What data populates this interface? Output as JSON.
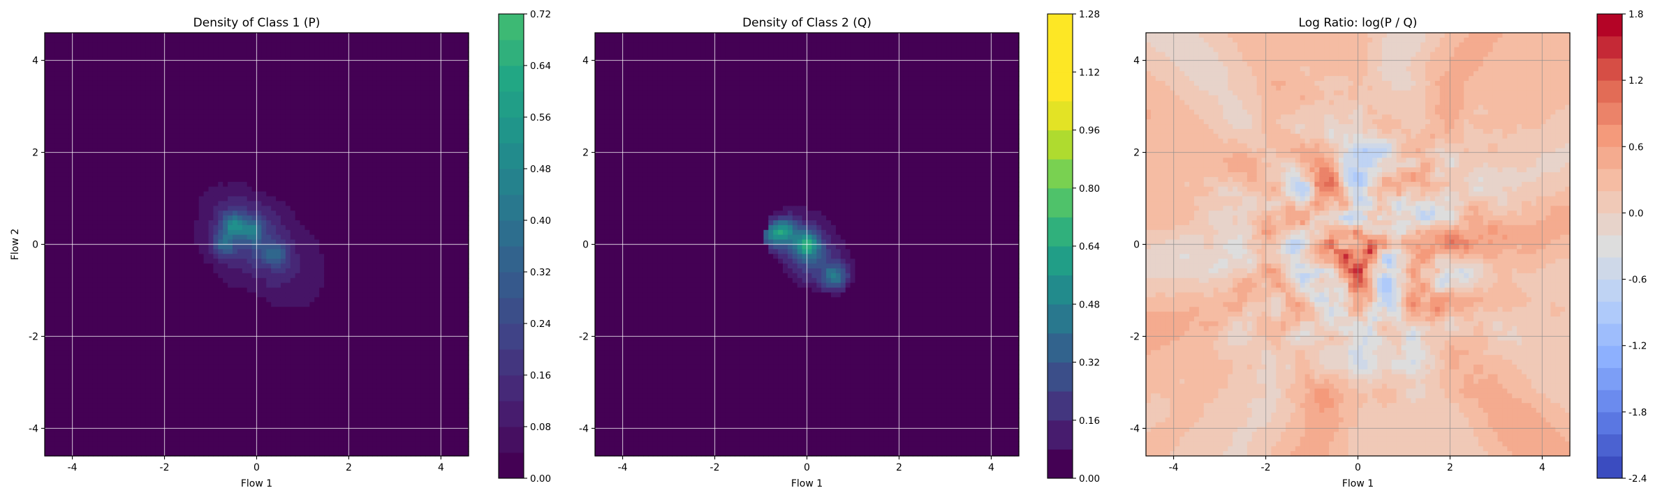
{
  "chart_data": [
    {
      "type": "heatmap",
      "title": "Density of Class 1 (P)",
      "xlabel": "Flow 1",
      "ylabel": "Flow 2",
      "xlim": [
        -4.6,
        4.6
      ],
      "ylim": [
        -4.6,
        4.6
      ],
      "xticks": [
        -4,
        -2,
        0,
        2,
        4
      ],
      "yticks": [
        -4,
        -2,
        0,
        2,
        4
      ],
      "grid": true,
      "colormap": "viridis",
      "colorbar": {
        "ticks": [
          "0.00",
          "0.08",
          "0.16",
          "0.24",
          "0.32",
          "0.40",
          "0.48",
          "0.56",
          "0.64",
          "0.72"
        ],
        "range": [
          0,
          0.72
        ],
        "display_max": 1.0,
        "levels": 18
      },
      "distribution": {
        "center": [
          0.0,
          0.0
        ],
        "spread": [
          0.85,
          0.85
        ],
        "correlation": -0.45,
        "peak": 0.6,
        "extent": 2.0,
        "hotspots": [
          [
            -0.5,
            0.4,
            0.6
          ],
          [
            -0.1,
            0.3,
            0.5
          ],
          [
            -0.7,
            0.0,
            0.45
          ],
          [
            0.4,
            -0.2,
            0.4
          ]
        ]
      }
    },
    {
      "type": "heatmap",
      "title": "Density of Class 2 (Q)",
      "xlabel": "Flow 1",
      "ylabel": "",
      "xlim": [
        -4.6,
        4.6
      ],
      "ylim": [
        -4.6,
        4.6
      ],
      "xticks": [
        -4,
        -2,
        0,
        2,
        4
      ],
      "yticks": [
        -4,
        -2,
        0,
        2,
        4
      ],
      "grid": true,
      "colormap": "viridis",
      "colorbar": {
        "ticks": [
          "0.00",
          "0.16",
          "0.32",
          "0.48",
          "0.64",
          "0.80",
          "0.96",
          "1.12",
          "1.28"
        ],
        "range": [
          0,
          1.28
        ],
        "display_max": 1.0,
        "levels": 16
      },
      "distribution": {
        "center": [
          0.0,
          -0.1
        ],
        "spread": [
          0.65,
          0.6
        ],
        "correlation": -0.45,
        "peak": 0.75,
        "extent": 1.6,
        "hotspots": [
          [
            -0.5,
            0.3,
            0.7
          ],
          [
            0.0,
            0.0,
            0.75
          ],
          [
            0.6,
            -0.7,
            0.6
          ],
          [
            -0.8,
            0.2,
            0.5
          ]
        ]
      }
    },
    {
      "type": "heatmap",
      "title": "Log Ratio: log(P / Q)",
      "xlabel": "Flow 1",
      "ylabel": "",
      "xlim": [
        -4.6,
        4.6
      ],
      "ylim": [
        -4.6,
        4.6
      ],
      "xticks": [
        -4,
        -2,
        0,
        2,
        4
      ],
      "yticks": [
        -4,
        -2,
        0,
        2,
        4
      ],
      "grid": true,
      "colormap": "coolwarm",
      "colorbar": {
        "ticks": [
          "-2.4",
          "-1.8",
          "-1.2",
          "-0.6",
          "0.0",
          "0.6",
          "1.2",
          "1.8"
        ],
        "range": [
          -2.4,
          1.8
        ],
        "levels": 21
      }
    }
  ]
}
